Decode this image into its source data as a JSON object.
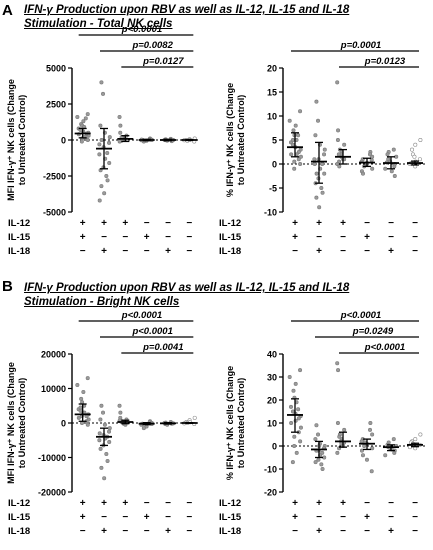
{
  "panels": [
    {
      "letter": "A",
      "title_line1": "IFN-γ Production upon RBV as well as IL-12, IL-15 and IL-18",
      "title_line2": "Stimulation - Total NK cells"
    },
    {
      "letter": "B",
      "title_line1": "IFN-γ Production upon RBV as well as IL-12, IL-15 and IL-18",
      "title_line2": "Stimulation - Bright NK cells"
    }
  ],
  "chart_data": [
    {
      "type": "scatter",
      "panel": "A",
      "title": "",
      "ylabel": "MFI IFN-γ⁺ NK cells (Change to Untreated Control)",
      "ylim": [
        -5000,
        5000
      ],
      "yticks": [
        -5000,
        -2500,
        0,
        2500,
        5000
      ],
      "conditions": [
        {
          "row": "IL-12",
          "marks": [
            "+",
            "+",
            "+",
            "−",
            "−",
            "−"
          ]
        },
        {
          "row": "IL-15",
          "marks": [
            "+",
            "−",
            "−",
            "+",
            "−",
            "−"
          ]
        },
        {
          "row": "IL-18",
          "marks": [
            "−",
            "+",
            "−",
            "−",
            "+",
            "−"
          ]
        }
      ],
      "groups": [
        {
          "mean": 450,
          "sd_low": 150,
          "sd_high": 800,
          "style": "filled",
          "points": [
            1800,
            1600,
            1300,
            1100,
            1000,
            900,
            800,
            700,
            600,
            500,
            450,
            400,
            300,
            200,
            100,
            0,
            -100,
            200,
            700,
            1500
          ]
        },
        {
          "mean": -600,
          "sd_low": -2000,
          "sd_high": 800,
          "style": "filled",
          "points": [
            4000,
            3200,
            1000,
            500,
            200,
            -200,
            -500,
            -900,
            -1300,
            -1600,
            -1900,
            -2100,
            -2500,
            -2800,
            -3200,
            -3700,
            -4200,
            -1000,
            0,
            -300
          ]
        },
        {
          "mean": 80,
          "sd_low": -100,
          "sd_high": 300,
          "style": "filled",
          "points": [
            1600,
            1000,
            500,
            300,
            200,
            150,
            100,
            50,
            0,
            -50,
            -100,
            200
          ]
        },
        {
          "mean": 0,
          "sd_low": -50,
          "sd_high": 50,
          "style": "filled",
          "points": [
            100,
            50,
            20,
            0,
            -20,
            -50,
            -100,
            0,
            30
          ]
        },
        {
          "mean": 0,
          "sd_low": -50,
          "sd_high": 50,
          "style": "filled",
          "points": [
            80,
            40,
            10,
            0,
            -10,
            -40,
            -80,
            20
          ]
        },
        {
          "mean": 0,
          "sd_low": -30,
          "sd_high": 30,
          "style": "open",
          "points": [
            100,
            50,
            0,
            -50,
            -100,
            20,
            -20,
            0
          ]
        }
      ],
      "comparisons": [
        {
          "label": "p<0.0001",
          "from": 1,
          "to": 6,
          "level": 3
        },
        {
          "label": "p=0.0082",
          "from": 2,
          "to": 6,
          "level": 2
        },
        {
          "label": "p=0.0127",
          "from": 3,
          "to": 6,
          "level": 1
        }
      ]
    },
    {
      "type": "scatter",
      "panel": "A",
      "title": "",
      "ylabel": "% IFN-γ⁺ NK cells (Change to Untreated Control)",
      "ylim": [
        -10,
        20
      ],
      "yticks": [
        -10,
        -5,
        0,
        5,
        10,
        15,
        20
      ],
      "conditions": [
        {
          "row": "IL-12",
          "marks": [
            "+",
            "+",
            "+",
            "−",
            "−",
            "−"
          ]
        },
        {
          "row": "IL-15",
          "marks": [
            "+",
            "−",
            "−",
            "+",
            "−",
            "−"
          ]
        },
        {
          "row": "IL-18",
          "marks": [
            "−",
            "+",
            "−",
            "−",
            "+",
            "−"
          ]
        }
      ],
      "groups": [
        {
          "mean": 3.5,
          "sd_low": 1.5,
          "sd_high": 6.5,
          "style": "filled",
          "points": [
            11,
            9,
            8,
            7,
            6,
            5,
            4.5,
            4,
            3.5,
            3,
            2.5,
            2,
            1.5,
            1,
            0.5,
            0,
            -1,
            2,
            5,
            6
          ]
        },
        {
          "mean": 0.5,
          "sd_low": -4,
          "sd_high": 4.5,
          "style": "filled",
          "points": [
            13,
            9,
            6,
            4,
            3,
            2,
            1,
            0,
            -1,
            -2,
            -3,
            -4,
            -5,
            -6,
            -7,
            -9,
            0,
            1,
            -2
          ]
        },
        {
          "mean": 1.5,
          "sd_low": 0,
          "sd_high": 3,
          "style": "filled",
          "points": [
            17,
            7,
            5,
            4,
            3,
            2.5,
            2,
            1.5,
            1,
            0.5,
            0,
            -0.5,
            1,
            2
          ]
        },
        {
          "mean": 0.3,
          "sd_low": -0.5,
          "sd_high": 1.2,
          "style": "filled",
          "points": [
            2.5,
            2,
            1.5,
            1,
            0.5,
            0,
            -0.5,
            -1,
            -1.5,
            -2,
            0.2,
            0.8
          ]
        },
        {
          "mean": 0.2,
          "sd_low": -1,
          "sd_high": 1.5,
          "style": "filled",
          "points": [
            3,
            2.5,
            2,
            1.5,
            1,
            0.5,
            0,
            -0.5,
            -1,
            -1.5,
            -2.5,
            0.3
          ]
        },
        {
          "mean": 0.2,
          "sd_low": -0.2,
          "sd_high": 0.6,
          "style": "open",
          "points": [
            5,
            4,
            3,
            2,
            1,
            0.5,
            0,
            -0.5,
            0.2,
            1.5
          ]
        }
      ],
      "comparisons": [
        {
          "label": "p=0.0001",
          "from": 1,
          "to": 6,
          "level": 2
        },
        {
          "label": "p=0.0123",
          "from": 3,
          "to": 6,
          "level": 1
        }
      ]
    },
    {
      "type": "scatter",
      "panel": "B",
      "title": "",
      "ylabel": "MFI IFN-γ⁺ NK cells (Change to Untreated Control)",
      "ylim": [
        -20000,
        20000
      ],
      "yticks": [
        -20000,
        -10000,
        0,
        10000,
        20000
      ],
      "conditions": [
        {
          "row": "IL-12",
          "marks": [
            "+",
            "+",
            "+",
            "−",
            "−",
            "−"
          ]
        },
        {
          "row": "IL-15",
          "marks": [
            "+",
            "−",
            "−",
            "+",
            "−",
            "−"
          ]
        },
        {
          "row": "IL-18",
          "marks": [
            "−",
            "+",
            "−",
            "−",
            "+",
            "−"
          ]
        }
      ],
      "groups": [
        {
          "mean": 2500,
          "sd_low": 500,
          "sd_high": 5500,
          "style": "filled",
          "points": [
            13000,
            11000,
            9000,
            7000,
            6000,
            5000,
            4000,
            3500,
            3000,
            2500,
            2000,
            1500,
            1000,
            500,
            0,
            -500,
            2000,
            3000,
            4500
          ]
        },
        {
          "mean": -4000,
          "sd_low": -6500,
          "sd_high": -1500,
          "style": "filled",
          "points": [
            5000,
            3000,
            1000,
            -500,
            -1500,
            -2500,
            -3500,
            -4000,
            -4500,
            -5500,
            -6500,
            -7500,
            -9000,
            -11000,
            -13000,
            -16000,
            -3000,
            -5000
          ]
        },
        {
          "mean": 300,
          "sd_low": -200,
          "sd_high": 800,
          "style": "filled",
          "points": [
            5000,
            3000,
            1500,
            1000,
            500,
            200,
            0,
            -200,
            -500,
            300,
            700
          ]
        },
        {
          "mean": -200,
          "sd_low": -500,
          "sd_high": 100,
          "style": "filled",
          "points": [
            500,
            200,
            0,
            -200,
            -500,
            -1000,
            -1500,
            -300
          ]
        },
        {
          "mean": -100,
          "sd_low": -300,
          "sd_high": 100,
          "style": "filled",
          "points": [
            300,
            100,
            0,
            -100,
            -300,
            -500,
            -200
          ]
        },
        {
          "mean": 0,
          "sd_low": -100,
          "sd_high": 100,
          "style": "open",
          "points": [
            1500,
            800,
            300,
            0,
            -300,
            200,
            -100
          ]
        }
      ],
      "comparisons": [
        {
          "label": "p<0.0001",
          "from": 1,
          "to": 6,
          "level": 3
        },
        {
          "label": "p<0.0001",
          "from": 2,
          "to": 6,
          "level": 2
        },
        {
          "label": "p=0.0041",
          "from": 3,
          "to": 6,
          "level": 1
        }
      ]
    },
    {
      "type": "scatter",
      "panel": "B",
      "title": "",
      "ylabel": "% IFN-γ⁺ NK cells (Change to Untreated Control)",
      "ylim": [
        -20,
        40
      ],
      "yticks": [
        -20,
        -10,
        0,
        10,
        20,
        30,
        40
      ],
      "conditions": [
        {
          "row": "IL-12",
          "marks": [
            "+",
            "+",
            "+",
            "−",
            "−",
            "−"
          ]
        },
        {
          "row": "IL-15",
          "marks": [
            "+",
            "−",
            "−",
            "+",
            "−",
            "−"
          ]
        },
        {
          "row": "IL-18",
          "marks": [
            "−",
            "+",
            "−",
            "−",
            "+",
            "−"
          ]
        }
      ],
      "groups": [
        {
          "mean": 13.5,
          "sd_low": 6,
          "sd_high": 20.5,
          "style": "filled",
          "points": [
            33,
            30,
            27,
            24,
            21,
            19,
            17,
            15,
            14,
            13,
            12,
            10,
            8,
            6,
            4,
            2,
            0,
            -3,
            -7,
            16,
            11
          ]
        },
        {
          "mean": -1.5,
          "sd_low": -5,
          "sd_high": 2,
          "style": "filled",
          "points": [
            9,
            5,
            3,
            1,
            0,
            -1,
            -2,
            -3,
            -4,
            -5,
            -6,
            -7,
            -8,
            -10,
            -2,
            0
          ]
        },
        {
          "mean": 2,
          "sd_low": -0.5,
          "sd_high": 6,
          "style": "filled",
          "points": [
            36,
            33,
            10,
            7,
            5,
            3,
            2,
            1,
            0,
            -1,
            -3,
            4,
            1.5
          ]
        },
        {
          "mean": 1,
          "sd_low": -1.5,
          "sd_high": 3,
          "style": "filled",
          "points": [
            10,
            7,
            5,
            3,
            2,
            1,
            0,
            -1,
            -2,
            -4,
            -6,
            -11,
            1.5
          ]
        },
        {
          "mean": -0.5,
          "sd_low": -2,
          "sd_high": 0.5,
          "style": "filled",
          "points": [
            3,
            1.5,
            0.5,
            0,
            -0.5,
            -1,
            -2,
            -3,
            -4,
            -1.5
          ]
        },
        {
          "mean": 0.5,
          "sd_low": -0.3,
          "sd_high": 1.2,
          "style": "open",
          "points": [
            5,
            3,
            2,
            1,
            0.5,
            0,
            -0.5,
            -1,
            1.5
          ]
        }
      ],
      "comparisons": [
        {
          "label": "p<0.0001",
          "from": 1,
          "to": 6,
          "level": 3
        },
        {
          "label": "p=0.0249",
          "from": 2,
          "to": 6,
          "level": 2
        },
        {
          "label": "p<0.0001",
          "from": 3,
          "to": 6,
          "level": 1
        }
      ]
    }
  ]
}
